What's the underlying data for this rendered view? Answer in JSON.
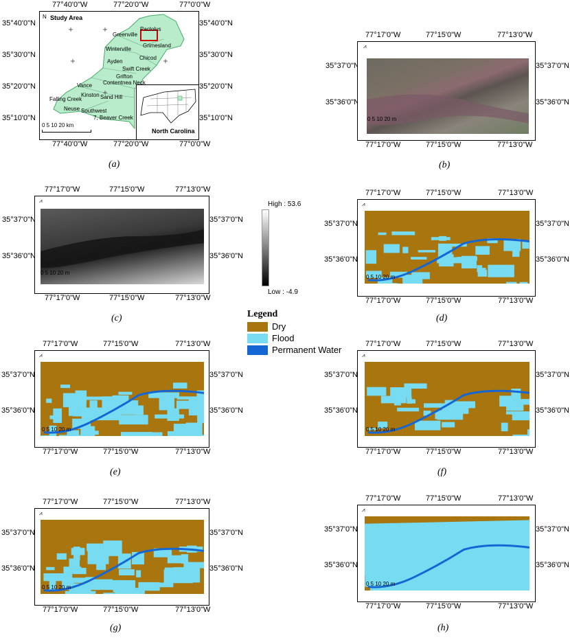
{
  "colors": {
    "dry": "#a8750f",
    "flood": "#77dcf2",
    "water": "#1466d4",
    "study": "#b9eccb"
  },
  "panel_a": {
    "caption": "(a)",
    "top_ticks": [
      "77°40'0\"W",
      "77°20'0\"W",
      "77°0'0\"W"
    ],
    "bottom_ticks": [
      "77°40'0\"W",
      "77°20'0\"W",
      "77°0'0\"W"
    ],
    "left_ticks": [
      "35°40'0\"N",
      "35°30'0\"N",
      "35°20'0\"N",
      "35°10'0\"N"
    ],
    "right_ticks": [
      "35°40'0\"N",
      "35°30'0\"N",
      "35°20'0\"N",
      "35°10'0\"N"
    ],
    "title": "Study Area",
    "north": "N",
    "places": [
      "Pactolus",
      "Greenville",
      "Grimesland",
      "Winterville",
      "Chicod",
      "Ayden",
      "Swift Creek",
      "Grifton",
      "Contentnea Neck",
      "Vance",
      "Kinston",
      "Sand Hill",
      "Falling Creek",
      "Neuse",
      "Southwest",
      "7, Beaver Creek"
    ],
    "scale": "0  5  10       20 km",
    "inset_label": "North Carolina"
  },
  "panel_b": {
    "caption": "(b)",
    "top_ticks": [
      "77°17'0\"W",
      "77°15'0\"W",
      "77°13'0\"W"
    ],
    "bottom_ticks": [
      "77°17'0\"W",
      "77°15'0\"W",
      "77°13'0\"W"
    ],
    "left_ticks": [
      "35°37'0\"N",
      "35°36'0\"N"
    ],
    "right_ticks": [
      "35°37'0\"N",
      "35°36'0\"N"
    ],
    "scale": "0  5  10     20 m"
  },
  "panel_c": {
    "caption": "(c)",
    "top_ticks": [
      "77°17'0\"W",
      "77°15'0\"W",
      "77°13'0\"W"
    ],
    "bottom_ticks": [
      "77°17'0\"W",
      "77°15'0\"W",
      "77°13'0\"W"
    ],
    "left_ticks": [
      "35°37'0\"N",
      "35°36'0\"N"
    ],
    "right_ticks": [
      "35°37'0\"N",
      "35°36'0\"N"
    ],
    "scale": "0  5  10     20 m",
    "high": "High : 53.6",
    "low": "Low : -4.9"
  },
  "panel_d": {
    "caption": "(d)",
    "top_ticks": [
      "77°17'0\"W",
      "77°15'0\"W",
      "77°13'0\"W"
    ],
    "bottom_ticks": [
      "77°17'0\"W",
      "77°15'0\"W",
      "77°13'0\"W"
    ],
    "left_ticks": [
      "35°37'0\"N",
      "35°36'0\"N"
    ],
    "right_ticks": [
      "35°37'0\"N",
      "35°36'0\"N"
    ],
    "scale": "0  5  10     20 m"
  },
  "panel_e": {
    "caption": "(e)",
    "top_ticks": [
      "77°17'0\"W",
      "77°15'0\"W",
      "77°13'0\"W"
    ],
    "bottom_ticks": [
      "77°17'0\"W",
      "77°15'0\"W",
      "77°13'0\"W"
    ],
    "left_ticks": [
      "35°37'0\"N",
      "35°36'0\"N"
    ],
    "right_ticks": [
      "35°37'0\"N",
      "35°36'0\"N"
    ],
    "scale": "0  5  10     20 m"
  },
  "panel_f": {
    "caption": "(f)",
    "top_ticks": [
      "77°17'0\"W",
      "77°15'0\"W",
      "77°13'0\"W"
    ],
    "bottom_ticks": [
      "77°17'0\"W",
      "77°15'0\"W",
      "77°13'0\"W"
    ],
    "left_ticks": [
      "35°37'0\"N",
      "35°36'0\"N"
    ],
    "right_ticks": [
      "35°37'0\"N",
      "35°36'0\"N"
    ],
    "scale": "0  5  10     20 m"
  },
  "panel_g": {
    "caption": "(g)",
    "top_ticks": [
      "77°17'0\"W",
      "77°15'0\"W",
      "77°13'0\"W"
    ],
    "bottom_ticks": [
      "77°17'0\"W",
      "77°15'0\"W",
      "77°13'0\"W"
    ],
    "left_ticks": [
      "35°37'0\"N",
      "35°36'0\"N"
    ],
    "right_ticks": [
      "35°37'0\"N",
      "35°36'0\"N"
    ],
    "scale": "0  5  10     20 m"
  },
  "panel_h": {
    "caption": "(h)",
    "top_ticks": [
      "77°17'0\"W",
      "77°15'0\"W",
      "77°13'0\"W"
    ],
    "bottom_ticks": [
      "77°17'0\"W",
      "77°15'0\"W",
      "77°13'0\"W"
    ],
    "left_ticks": [
      "35°37'0\"N",
      "35°36'0\"N"
    ],
    "right_ticks": [
      "35°37'0\"N",
      "35°36'0\"N"
    ],
    "scale": "0  5  10     20 m"
  },
  "legend": {
    "title": "Legend",
    "items": [
      "Dry",
      "Flood",
      "Permanent Water"
    ]
  }
}
